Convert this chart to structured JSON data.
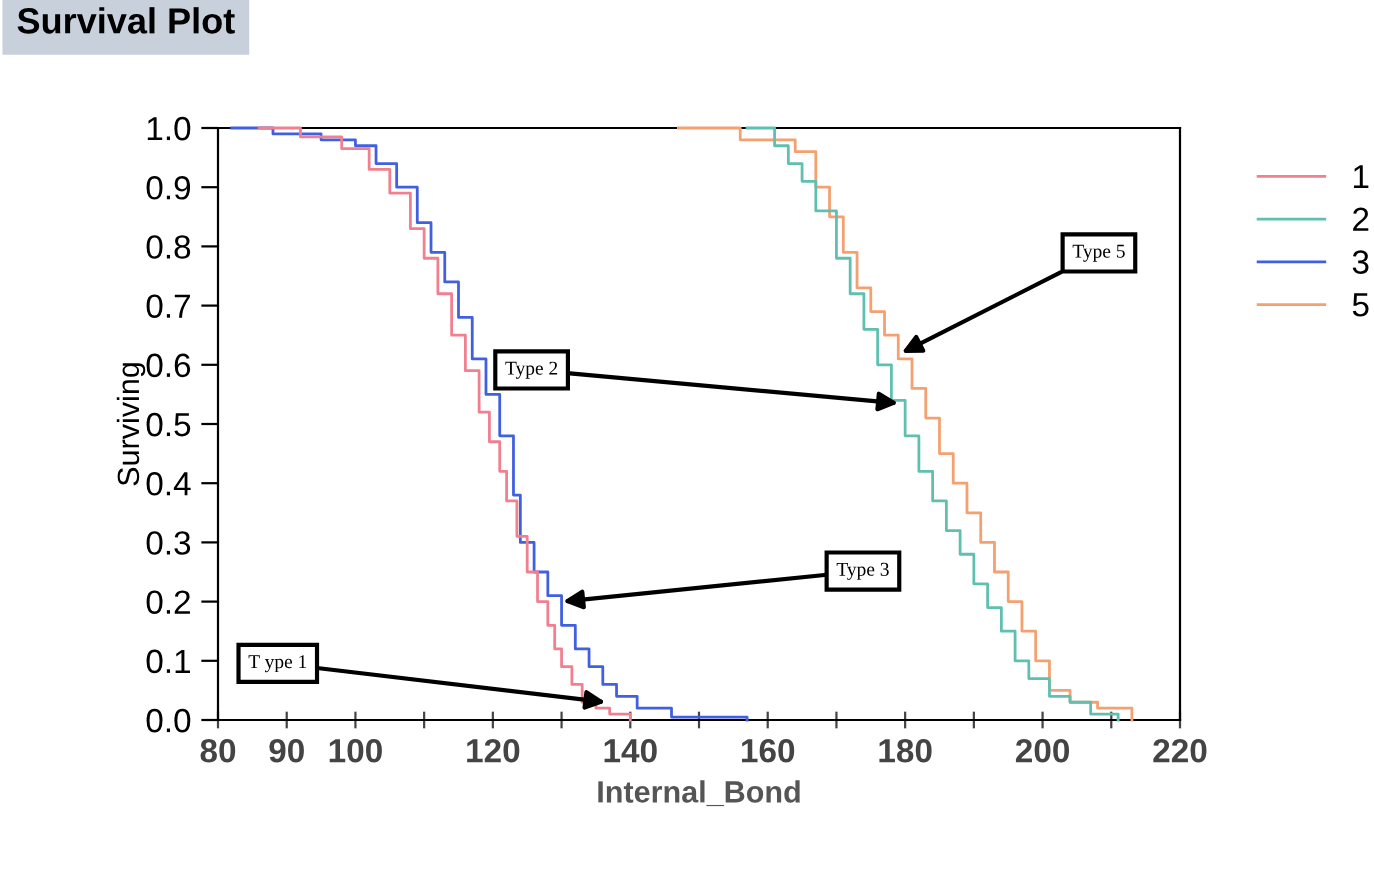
{
  "chart_data": {
    "type": "step",
    "title": "Survival Plot",
    "xlabel": "Internal_Bond",
    "ylabel": "Surviving",
    "xlim": [
      80,
      220
    ],
    "xticks": [
      80,
      90,
      100,
      {
        "value": 110,
        "label": null
      },
      120,
      {
        "value": 130,
        "label": null
      },
      140,
      {
        "value": 150,
        "label": null
      },
      160,
      {
        "value": 170,
        "label": null
      },
      180,
      {
        "value": 190,
        "label": null
      },
      200,
      {
        "value": 210,
        "label": null
      },
      220
    ],
    "ylim": [
      0,
      1
    ],
    "yticks": [
      {
        "value": 0,
        "label": "0.0"
      },
      {
        "value": 0.1,
        "label": "0.1"
      },
      {
        "value": 0.2,
        "label": "0.2"
      },
      {
        "value": 0.3,
        "label": "0.3"
      },
      {
        "value": 0.4,
        "label": "0.4"
      },
      {
        "value": 0.5,
        "label": "0.5"
      },
      {
        "value": 0.6,
        "label": "0.6"
      },
      {
        "value": 0.7,
        "label": "0.7"
      },
      {
        "value": 0.8,
        "label": "0.8"
      },
      {
        "value": 0.9,
        "label": "0.9"
      },
      {
        "value": 1,
        "label": "1.0"
      }
    ],
    "grid": false,
    "legend": "right",
    "marker": "none",
    "line_style": "solid",
    "series": [
      {
        "name": "1",
        "color": "#f08090",
        "x": [
          86,
          92,
          98,
          102,
          105,
          108,
          110,
          112,
          114,
          116,
          118,
          119.5,
          121,
          122,
          123.5,
          125,
          126.5,
          128,
          129,
          130,
          131.5,
          133,
          135,
          137,
          140
        ],
        "values": [
          1.0,
          0.985,
          0.965,
          0.93,
          0.89,
          0.83,
          0.78,
          0.72,
          0.65,
          0.59,
          0.52,
          0.47,
          0.42,
          0.37,
          0.31,
          0.25,
          0.2,
          0.16,
          0.12,
          0.09,
          0.06,
          0.03,
          0.02,
          0.01,
          0.0
        ]
      },
      {
        "name": "2",
        "color": "#60c0b0",
        "x": [
          157,
          161,
          163,
          165,
          167,
          170,
          172,
          174,
          176,
          178,
          180,
          182,
          184,
          186,
          188,
          190,
          192,
          194,
          196,
          198,
          201,
          204,
          207,
          211
        ],
        "values": [
          1.0,
          0.97,
          0.94,
          0.91,
          0.86,
          0.78,
          0.72,
          0.66,
          0.6,
          0.54,
          0.48,
          0.42,
          0.37,
          0.32,
          0.28,
          0.23,
          0.19,
          0.15,
          0.1,
          0.07,
          0.04,
          0.03,
          0.01,
          0.0
        ]
      },
      {
        "name": "3",
        "color": "#4060e0",
        "x": [
          82,
          88,
          95,
          100,
          103,
          106,
          109,
          111,
          113,
          115,
          117,
          119,
          121,
          123,
          124,
          126,
          128,
          130,
          132,
          134,
          136,
          138,
          141,
          146,
          157
        ],
        "values": [
          1.0,
          0.99,
          0.98,
          0.97,
          0.94,
          0.9,
          0.84,
          0.79,
          0.74,
          0.68,
          0.61,
          0.55,
          0.48,
          0.38,
          0.3,
          0.25,
          0.21,
          0.16,
          0.12,
          0.09,
          0.06,
          0.04,
          0.02,
          0.005,
          0.0
        ]
      },
      {
        "name": "5",
        "color": "#f4a070",
        "x": [
          147,
          156,
          164,
          167,
          169,
          171,
          173,
          175,
          177,
          179,
          181,
          183,
          185,
          187,
          189,
          191,
          193,
          195,
          197,
          199,
          201,
          204,
          208,
          213
        ],
        "values": [
          1.0,
          0.98,
          0.96,
          0.9,
          0.85,
          0.79,
          0.73,
          0.69,
          0.65,
          0.61,
          0.56,
          0.51,
          0.45,
          0.4,
          0.35,
          0.3,
          0.25,
          0.2,
          0.15,
          0.1,
          0.05,
          0.03,
          0.02,
          0.0
        ]
      }
    ],
    "annotations": [
      {
        "text": "T ype 1",
        "x": 136.4,
        "y": 0.03
      },
      {
        "text": "Type 2",
        "x": 179,
        "y": 0.535
      },
      {
        "text": "Type 3",
        "x": 130.2,
        "y": 0.2
      },
      {
        "text": "Type 5",
        "x": 179.5,
        "y": 0.62
      }
    ]
  }
}
